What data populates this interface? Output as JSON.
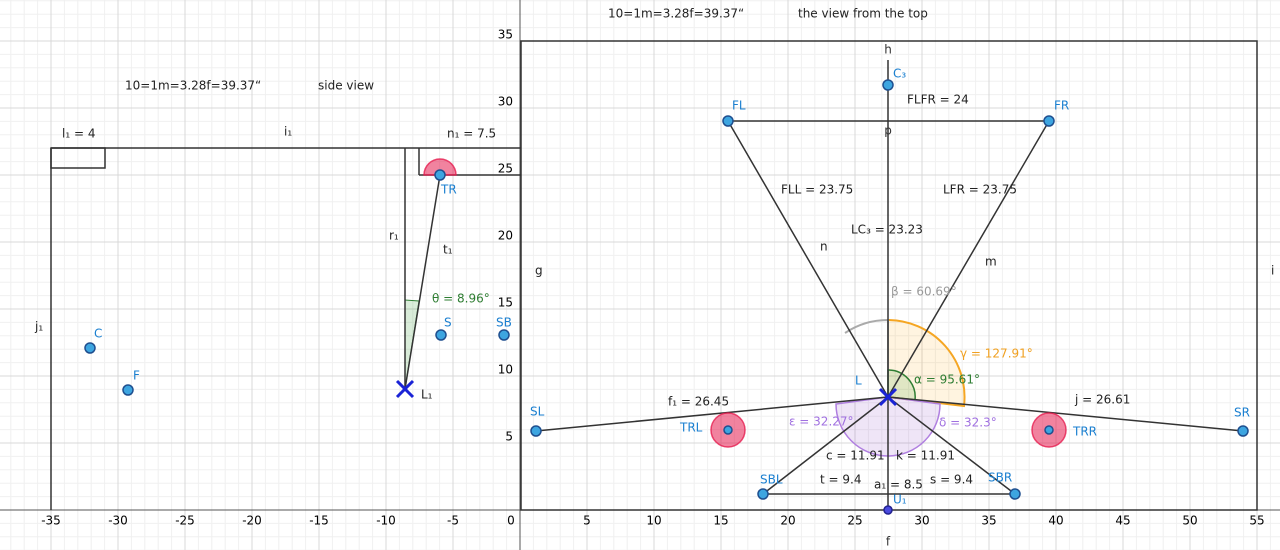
{
  "axes": {
    "xticks": [
      -35,
      -30,
      -25,
      -20,
      -15,
      -10,
      -5,
      0,
      5,
      10,
      15,
      20,
      25,
      30,
      35,
      40,
      45,
      50,
      55
    ],
    "yticks": [
      5,
      10,
      15,
      20,
      25,
      30,
      35
    ]
  },
  "labels": [
    "10=1m=3.28f=39.37“",
    "the view from the top",
    "10=1m=3.28f=39.37“",
    "side view",
    "l₁ = 4",
    "i₁",
    "n₁ = 7.5",
    "r₁",
    "t₁",
    "θ = 8.96°",
    "j₁",
    "g",
    "h",
    "i",
    "p",
    "FLFR = 24",
    "FLL = 23.75",
    "LFR = 23.75",
    "LC₃ = 23.23",
    "n",
    "m",
    "β = 60.69°",
    "γ = 127.91°",
    "α = 95.61°",
    "f₁ = 26.45",
    "j = 26.61",
    "ε = 32.27°",
    "δ = 32.3°",
    "c = 11.91",
    "k = 11.91",
    "t = 9.4",
    "a₁ = 8.5",
    "s = 9.4",
    "f"
  ],
  "points": [
    "TR",
    "S",
    "SB",
    "C",
    "F",
    "L₁",
    "FL",
    "FR",
    "C₃",
    "L",
    "SL",
    "SR",
    "TRL",
    "TRR",
    "SBL",
    "SBR",
    "U₁"
  ]
}
